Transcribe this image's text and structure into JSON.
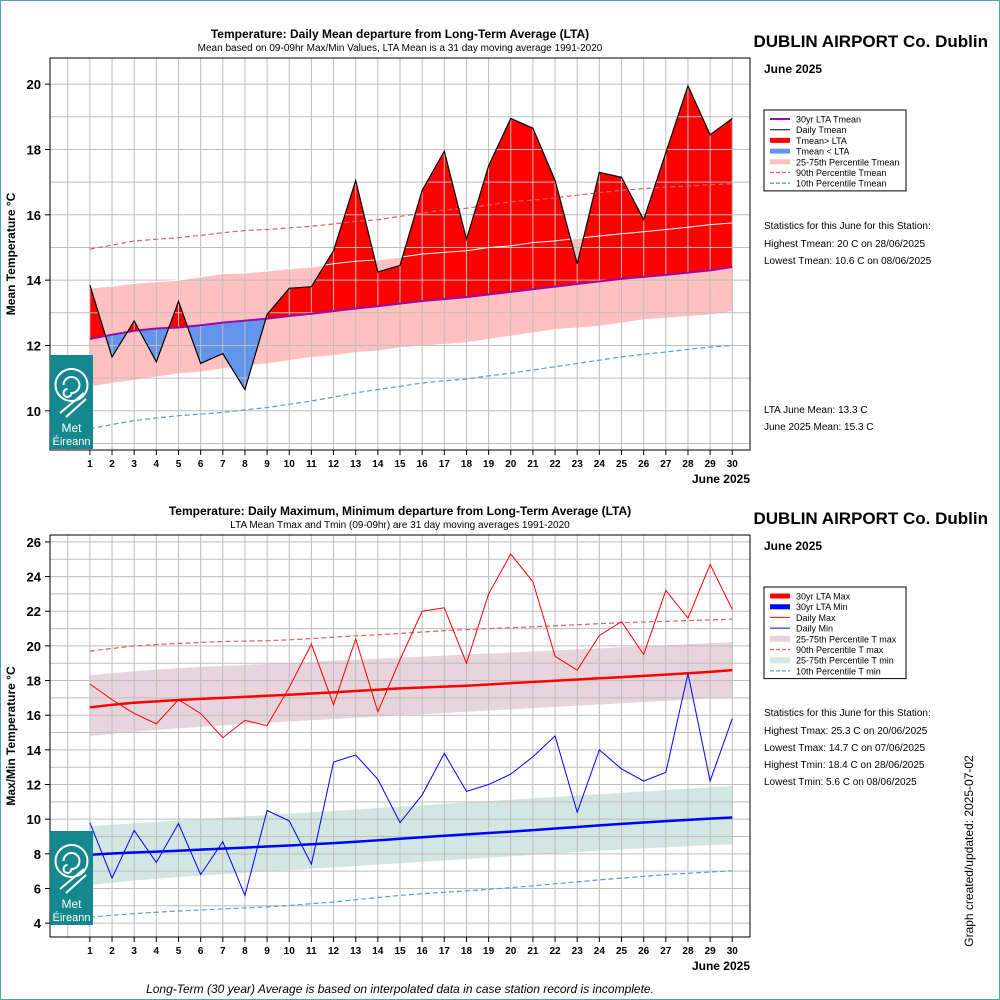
{
  "footer_note": "Long-Term (30 year) Average is based on interpolated data in case station record is incomplete.",
  "created_label": "Graph created/updated:  2025-07-02",
  "logo": {
    "text_line1": "Met",
    "text_line2": "Éireann",
    "icon": "met-eireann-swirl-logo"
  },
  "colors": {
    "lta_mean": "#9a0aa8",
    "daily_mean": "#000000",
    "above": "#ff0000",
    "below": "#6495ed",
    "p2575_mean": "#ffc0c0",
    "p90": "#e06060",
    "p10": "#5a9ae0",
    "lta_max": "#ff0000",
    "lta_min": "#0000ff",
    "daily_max": "#ff0000",
    "daily_min": "#0000ff",
    "p2575_max": "#e8d4dc",
    "p2575_min": "#d2e6e2",
    "logo_bg": "#15888f"
  },
  "chart_data": [
    {
      "type": "area",
      "title": "Temperature: Daily Mean departure from Long-Term Average (LTA)",
      "subtitle": "Mean based on 09-09hr Max/Min Values, LTA Mean is a 31 day moving average 1991-2020",
      "station": "DUBLIN AIRPORT Co. Dublin",
      "month": "June 2025",
      "xlabel": "June 2025",
      "ylabel": "Mean Temperature °C",
      "xlim": [
        -0.8,
        30.8
      ],
      "ylim": [
        8.8,
        20.8
      ],
      "yticks": [
        10,
        12,
        14,
        16,
        18,
        20
      ],
      "grid": true,
      "legend_position": "right",
      "legend": [
        {
          "label": "30yr LTA Tmean",
          "style": "line",
          "color": "#9a0aa8"
        },
        {
          "label": "Daily Tmean",
          "style": "thinline",
          "color": "#000000"
        },
        {
          "label": "Tmean> LTA",
          "style": "thickline",
          "color": "#ff0000"
        },
        {
          "label": "Tmean < LTA",
          "style": "thickline",
          "color": "#6495ed"
        },
        {
          "label": "25-75th Percentile Tmean",
          "style": "thickline",
          "color": "#ffc0c0"
        },
        {
          "label": "90th Percentile Tmean",
          "style": "dash",
          "color": "#e06060"
        },
        {
          "label": "10th Percentile Tmean",
          "style": "dash",
          "color": "#5a9ae0"
        }
      ],
      "stats_heading": "Statistics for this June for this Station:",
      "stats": [
        "Highest Tmean: 20 C on 28/06/2025",
        "Lowest Tmean: 10.6 C on 08/06/2025"
      ],
      "extra": [
        "LTA June Mean: 13.3 C",
        "June 2025 Mean: 15.3 C"
      ],
      "x": [
        1,
        2,
        3,
        4,
        5,
        6,
        7,
        8,
        9,
        10,
        11,
        12,
        13,
        14,
        15,
        16,
        17,
        18,
        19,
        20,
        21,
        22,
        23,
        24,
        25,
        26,
        27,
        28,
        29,
        30
      ],
      "series": [
        {
          "name": "Daily Tmean",
          "values": [
            13.85,
            11.65,
            12.75,
            11.5,
            13.35,
            11.45,
            11.75,
            10.65,
            12.95,
            13.75,
            13.8,
            14.9,
            17.05,
            14.25,
            14.45,
            16.75,
            17.95,
            15.25,
            17.5,
            18.95,
            18.65,
            17.05,
            14.5,
            17.3,
            17.15,
            15.85,
            17.9,
            19.95,
            18.45,
            18.95
          ]
        },
        {
          "name": "30yr LTA Tmean",
          "values": [
            12.2,
            12.33,
            12.45,
            12.52,
            12.55,
            12.62,
            12.7,
            12.76,
            12.82,
            12.9,
            12.97,
            13.05,
            13.13,
            13.2,
            13.28,
            13.36,
            13.42,
            13.48,
            13.56,
            13.64,
            13.72,
            13.8,
            13.88,
            13.96,
            14.04,
            14.1,
            14.16,
            14.23,
            14.3,
            14.4
          ]
        },
        {
          "name": "25th Percentile Tmean",
          "values": [
            10.75,
            10.85,
            10.95,
            11.05,
            11.15,
            11.2,
            11.3,
            11.4,
            11.45,
            11.55,
            11.65,
            11.7,
            11.8,
            11.85,
            11.95,
            12.0,
            12.05,
            12.1,
            12.2,
            12.3,
            12.4,
            12.5,
            12.55,
            12.6,
            12.7,
            12.8,
            12.85,
            12.9,
            12.95,
            13.05
          ]
        },
        {
          "name": "75th Percentile Tmean",
          "values": [
            13.75,
            13.82,
            13.9,
            13.95,
            14.0,
            14.1,
            14.2,
            14.22,
            14.28,
            14.35,
            14.4,
            14.5,
            14.58,
            14.62,
            14.7,
            14.8,
            14.85,
            14.9,
            15.0,
            15.05,
            15.15,
            15.2,
            15.28,
            15.35,
            15.42,
            15.48,
            15.55,
            15.62,
            15.7,
            15.75
          ]
        },
        {
          "name": "90th Percentile Tmean",
          "values": [
            14.95,
            15.07,
            15.2,
            15.25,
            15.3,
            15.37,
            15.45,
            15.52,
            15.55,
            15.6,
            15.65,
            15.72,
            15.8,
            15.85,
            15.95,
            16.05,
            16.15,
            16.2,
            16.3,
            16.4,
            16.45,
            16.52,
            16.6,
            16.68,
            16.75,
            16.8,
            16.85,
            16.88,
            16.92,
            16.95
          ]
        },
        {
          "name": "10th Percentile Tmean",
          "values": [
            9.45,
            9.58,
            9.7,
            9.78,
            9.85,
            9.9,
            9.95,
            10.03,
            10.1,
            10.2,
            10.3,
            10.42,
            10.55,
            10.65,
            10.75,
            10.85,
            10.92,
            10.97,
            11.07,
            11.15,
            11.25,
            11.35,
            11.45,
            11.55,
            11.65,
            11.73,
            11.8,
            11.88,
            11.95,
            12.0
          ]
        }
      ]
    },
    {
      "type": "line",
      "title": "Temperature: Daily Maximum, Minimum departure from Long-Term Average (LTA)",
      "subtitle": "LTA Mean Tmax and Tmin (09-09hr) are 31 day moving averages 1991-2020",
      "station": "DUBLIN AIRPORT Co. Dublin",
      "month": "June 2025",
      "xlabel": "June 2025",
      "ylabel": "Max/Min Temperature °C",
      "xlim": [
        -0.8,
        30.8
      ],
      "ylim": [
        3.2,
        26.4
      ],
      "yticks": [
        4,
        6,
        8,
        10,
        12,
        14,
        16,
        18,
        20,
        22,
        24,
        26
      ],
      "grid": true,
      "legend_position": "right",
      "legend": [
        {
          "label": "30yr LTA Max",
          "style": "thickline",
          "color": "#ff0000"
        },
        {
          "label": "30yr LTA Min",
          "style": "thickline",
          "color": "#0000ff"
        },
        {
          "label": "Daily Max",
          "style": "thinline",
          "color": "#ff0000"
        },
        {
          "label": "Daily Min",
          "style": "thinline",
          "color": "#0000ff"
        },
        {
          "label": "25-75th Percentile T max",
          "style": "band",
          "color": "#e8d4dc"
        },
        {
          "label": "90th Percentile T max",
          "style": "dash",
          "color": "#e06060"
        },
        {
          "label": "25-75th Percentile T min",
          "style": "band",
          "color": "#d2e6e2"
        },
        {
          "label": "10th Percentile T min",
          "style": "dash",
          "color": "#5a9ae0"
        }
      ],
      "stats_heading": "Statistics for this June for this Station:",
      "stats": [
        "Highest Tmax: 25.3 C on 20/06/2025",
        "Lowest Tmax: 14.7 C on 07/06/2025",
        "Highest Tmin: 18.4 C on 28/06/2025",
        "Lowest Tmin: 5.6 C on 08/06/2025"
      ],
      "x": [
        1,
        2,
        3,
        4,
        5,
        6,
        7,
        8,
        9,
        10,
        11,
        12,
        13,
        14,
        15,
        16,
        17,
        18,
        19,
        20,
        21,
        22,
        23,
        24,
        25,
        26,
        27,
        28,
        29,
        30
      ],
      "series": [
        {
          "name": "Daily Max",
          "values": [
            17.8,
            16.9,
            16.1,
            15.5,
            16.9,
            16.1,
            14.7,
            15.7,
            15.4,
            17.6,
            20.1,
            16.6,
            20.4,
            16.2,
            19.2,
            22.0,
            22.2,
            19.0,
            23.0,
            25.3,
            23.7,
            19.4,
            18.6,
            20.6,
            21.4,
            19.5,
            23.2,
            21.6,
            24.7,
            22.1
          ]
        },
        {
          "name": "Daily Min",
          "values": [
            9.8,
            6.6,
            9.35,
            7.5,
            9.75,
            6.8,
            8.7,
            5.6,
            10.5,
            9.9,
            7.4,
            13.3,
            13.7,
            12.3,
            9.8,
            11.4,
            13.8,
            11.6,
            12.0,
            12.6,
            13.6,
            14.8,
            10.4,
            14.0,
            12.9,
            12.2,
            12.7,
            18.4,
            12.2,
            15.8
          ]
        },
        {
          "name": "30yr LTA Max",
          "values": [
            16.45,
            16.6,
            16.72,
            16.8,
            16.88,
            16.94,
            17.0,
            17.06,
            17.12,
            17.18,
            17.25,
            17.32,
            17.4,
            17.47,
            17.55,
            17.6,
            17.65,
            17.7,
            17.77,
            17.85,
            17.92,
            17.99,
            18.06,
            18.13,
            18.2,
            18.27,
            18.34,
            18.42,
            18.5,
            18.6
          ]
        },
        {
          "name": "30yr LTA Min",
          "values": [
            7.95,
            8.02,
            8.08,
            8.13,
            8.18,
            8.24,
            8.3,
            8.36,
            8.42,
            8.48,
            8.55,
            8.62,
            8.7,
            8.78,
            8.87,
            8.96,
            9.04,
            9.12,
            9.2,
            9.28,
            9.37,
            9.46,
            9.55,
            9.64,
            9.73,
            9.81,
            9.89,
            9.96,
            10.03,
            10.1
          ]
        },
        {
          "name": "25th Percentile T max",
          "values": [
            14.8,
            14.92,
            15.04,
            15.15,
            15.25,
            15.33,
            15.42,
            15.5,
            15.57,
            15.64,
            15.71,
            15.78,
            15.85,
            15.92,
            15.99,
            16.06,
            16.13,
            16.2,
            16.27,
            16.34,
            16.41,
            16.48,
            16.55,
            16.62,
            16.69,
            16.76,
            16.83,
            16.9,
            16.97,
            17.05
          ]
        },
        {
          "name": "75th Percentile T max",
          "values": [
            18.3,
            18.42,
            18.54,
            18.63,
            18.71,
            18.78,
            18.84,
            18.9,
            18.96,
            19.02,
            19.08,
            19.14,
            19.2,
            19.26,
            19.32,
            19.38,
            19.44,
            19.5,
            19.56,
            19.62,
            19.68,
            19.74,
            19.8,
            19.86,
            19.92,
            19.98,
            20.04,
            20.1,
            20.16,
            20.22
          ]
        },
        {
          "name": "90th Percentile T max",
          "values": [
            19.7,
            19.85,
            20.0,
            20.08,
            20.14,
            20.2,
            20.25,
            20.28,
            20.3,
            20.35,
            20.42,
            20.5,
            20.58,
            20.64,
            20.72,
            20.8,
            20.88,
            20.94,
            21.0,
            21.05,
            21.1,
            21.16,
            21.22,
            21.28,
            21.34,
            21.38,
            21.42,
            21.46,
            21.5,
            21.55
          ]
        },
        {
          "name": "25th Percentile T min",
          "values": [
            6.2,
            6.33,
            6.46,
            6.56,
            6.66,
            6.74,
            6.82,
            6.9,
            6.98,
            7.06,
            7.14,
            7.22,
            7.3,
            7.38,
            7.46,
            7.54,
            7.62,
            7.7,
            7.78,
            7.86,
            7.94,
            8.02,
            8.1,
            8.18,
            8.26,
            8.32,
            8.38,
            8.44,
            8.5,
            8.55
          ]
        },
        {
          "name": "75th Percentile T min",
          "values": [
            9.6,
            9.68,
            9.76,
            9.84,
            9.92,
            10.0,
            10.08,
            10.16,
            10.24,
            10.32,
            10.4,
            10.48,
            10.56,
            10.64,
            10.72,
            10.8,
            10.88,
            10.96,
            11.04,
            11.12,
            11.2,
            11.28,
            11.36,
            11.44,
            11.52,
            11.6,
            11.68,
            11.76,
            11.84,
            11.92
          ]
        },
        {
          "name": "10th Percentile T min",
          "values": [
            4.35,
            4.45,
            4.55,
            4.63,
            4.7,
            4.76,
            4.82,
            4.88,
            4.94,
            5.02,
            5.12,
            5.22,
            5.35,
            5.48,
            5.6,
            5.7,
            5.78,
            5.86,
            5.95,
            6.05,
            6.15,
            6.27,
            6.38,
            6.5,
            6.6,
            6.7,
            6.8,
            6.88,
            6.95,
            7.02
          ]
        }
      ]
    }
  ]
}
